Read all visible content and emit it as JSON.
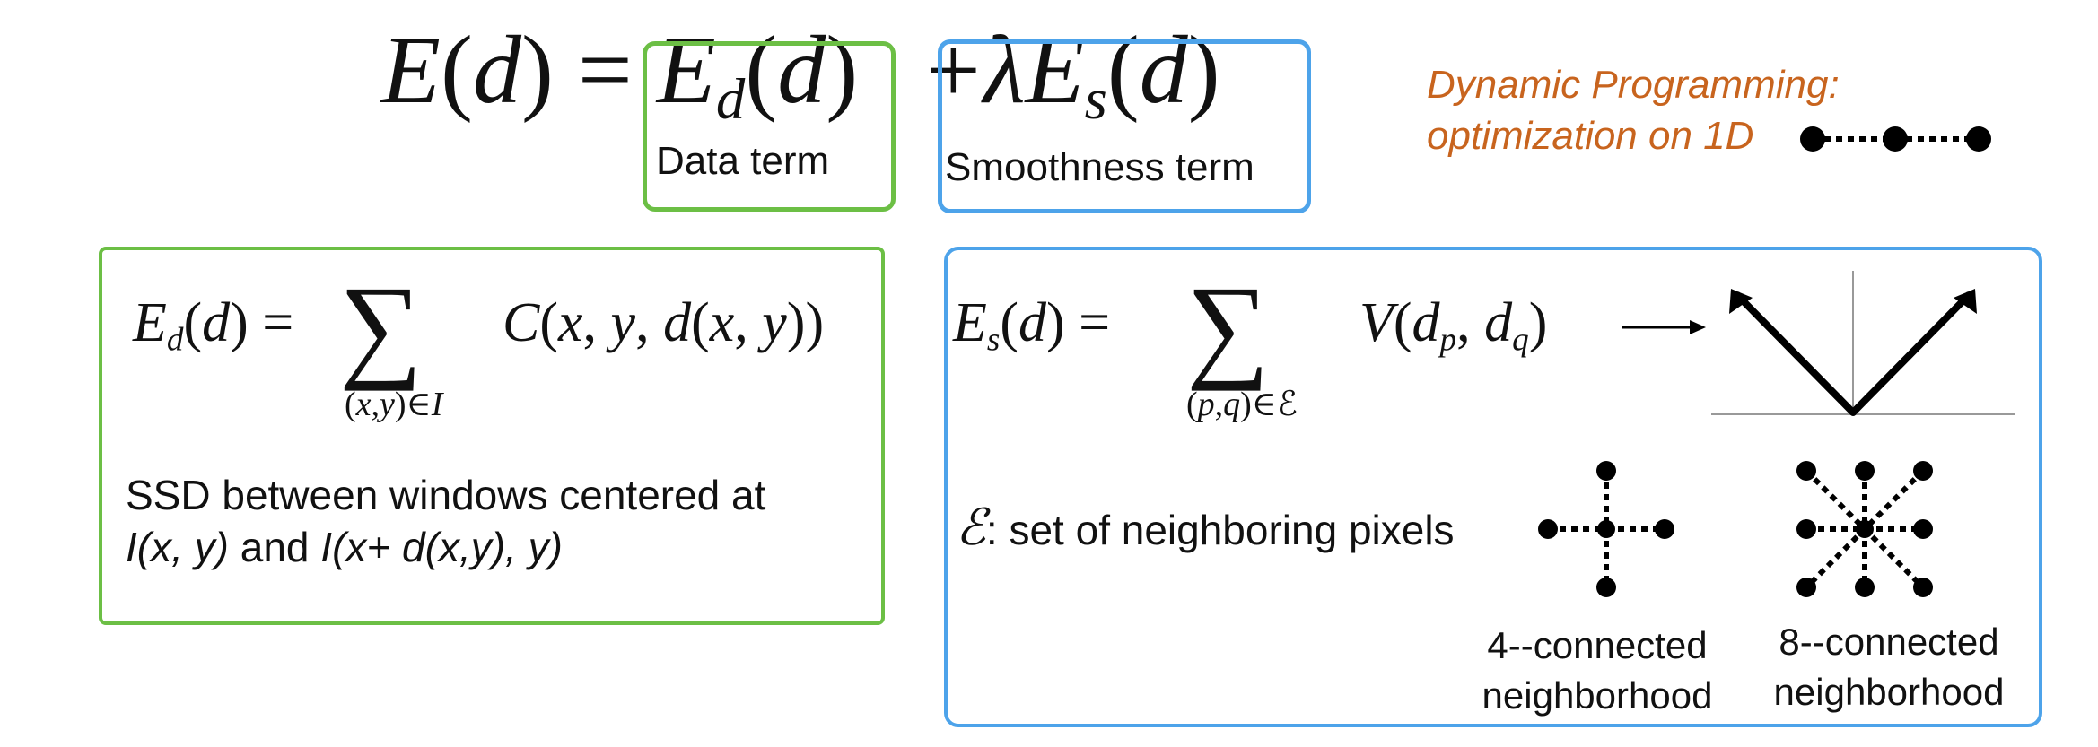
{
  "equation": {
    "lhs": "E(d) =",
    "data_term_expr": "E_d(d)",
    "plus": "+",
    "smooth_term_expr": "λE_s(d)",
    "data_term_label": "Data term",
    "smooth_term_label": "Smoothness term"
  },
  "dp_note": {
    "line1": "Dynamic Programming:",
    "line2": "optimization on 1D"
  },
  "data_panel": {
    "equation": "E_d(d) = Σ_{(x,y)∈I} C(x, y, d(x, y))",
    "desc_line1": "SSD between windows centered at",
    "desc_line2_a": "I(x, y)",
    "desc_line2_b": " and ",
    "desc_line2_c": "I(x+ d(x,y), y)"
  },
  "smooth_panel": {
    "equation": "E_s(d) = Σ_{(p,q)∈ℰ} V(d_p, d_q)",
    "set_symbol": "ℰ",
    "set_desc": ": set of neighboring pixels",
    "caption_4": [
      "4--connected",
      "neighborhood"
    ],
    "caption_8": [
      "8--connected",
      "neighborhood"
    ]
  },
  "colors": {
    "green": "#6cbf45",
    "blue": "#4da3ea",
    "orange": "#c8641e"
  }
}
